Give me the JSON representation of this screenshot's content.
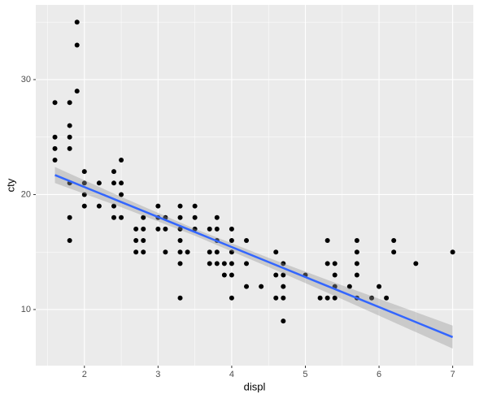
{
  "chart_data": {
    "type": "scatter",
    "x_label": "displ",
    "y_label": "cty",
    "xlim": [
      1.34,
      7.28
    ],
    "ylim": [
      5.12,
      36.5
    ],
    "xticks": [
      2,
      3,
      4,
      5,
      6,
      7
    ],
    "yticks": [
      10,
      20,
      30
    ],
    "grid": true,
    "series": [
      {
        "color": "#000000",
        "x": [
          1.6,
          1.6,
          1.6,
          1.6,
          1.8,
          1.8,
          1.8,
          1.8,
          1.8,
          1.8,
          1.8,
          1.9,
          1.9,
          1.9,
          2.0,
          2.0,
          2.0,
          2.0,
          2.2,
          2.2,
          2.4,
          2.4,
          2.4,
          2.4,
          2.5,
          2.5,
          2.5,
          2.5,
          2.7,
          2.7,
          2.7,
          2.8,
          2.8,
          2.8,
          2.8,
          3.0,
          3.0,
          3.0,
          3.1,
          3.1,
          3.1,
          3.3,
          3.3,
          3.3,
          3.3,
          3.3,
          3.3,
          3.3,
          3.4,
          3.5,
          3.5,
          3.5,
          3.7,
          3.7,
          3.7,
          3.8,
          3.8,
          3.8,
          3.8,
          3.8,
          3.9,
          3.9,
          4.0,
          4.0,
          4.0,
          4.0,
          4.0,
          4.0,
          4.2,
          4.2,
          4.2,
          4.4,
          4.6,
          4.6,
          4.6,
          4.7,
          4.7,
          4.7,
          4.7,
          4.7,
          5.0,
          5.2,
          5.3,
          5.3,
          5.3,
          5.4,
          5.4,
          5.4,
          5.4,
          5.6,
          5.7,
          5.7,
          5.7,
          5.7,
          5.7,
          5.9,
          6.0,
          6.1,
          6.2,
          6.2,
          6.5,
          7.0
        ],
        "values": [
          28,
          25,
          24,
          23,
          28,
          26,
          25,
          24,
          21,
          18,
          16,
          35,
          33,
          29,
          22,
          21,
          20,
          19,
          21,
          19,
          22,
          21,
          19,
          18,
          23,
          21,
          20,
          18,
          17,
          16,
          15,
          18,
          17,
          16,
          15,
          19,
          18,
          17,
          18,
          17,
          15,
          19,
          18,
          17,
          16,
          15,
          14,
          11,
          15,
          19,
          18,
          17,
          17,
          15,
          14,
          18,
          17,
          16,
          15,
          14,
          14,
          13,
          17,
          16,
          15,
          14,
          13,
          11,
          16,
          14,
          12,
          12,
          15,
          13,
          11,
          14,
          13,
          12,
          11,
          9,
          13,
          11,
          16,
          14,
          11,
          14,
          13,
          12,
          11,
          12,
          16,
          15,
          14,
          13,
          11,
          11,
          12,
          11,
          16,
          15,
          14,
          15
        ]
      },
      {
        "color": "#3366FF",
        "band_color": "#999999",
        "x": [
          1.6,
          2.5,
          3.47,
          4.5,
          5.5,
          7.0
        ],
        "values": [
          21.7,
          19.35,
          16.82,
          14.13,
          11.52,
          7.6
        ],
        "lower": [
          21.0,
          18.9,
          16.5,
          13.7,
          10.9,
          6.6
        ],
        "upper": [
          22.4,
          19.8,
          17.1,
          14.5,
          12.1,
          8.6
        ]
      }
    ]
  }
}
